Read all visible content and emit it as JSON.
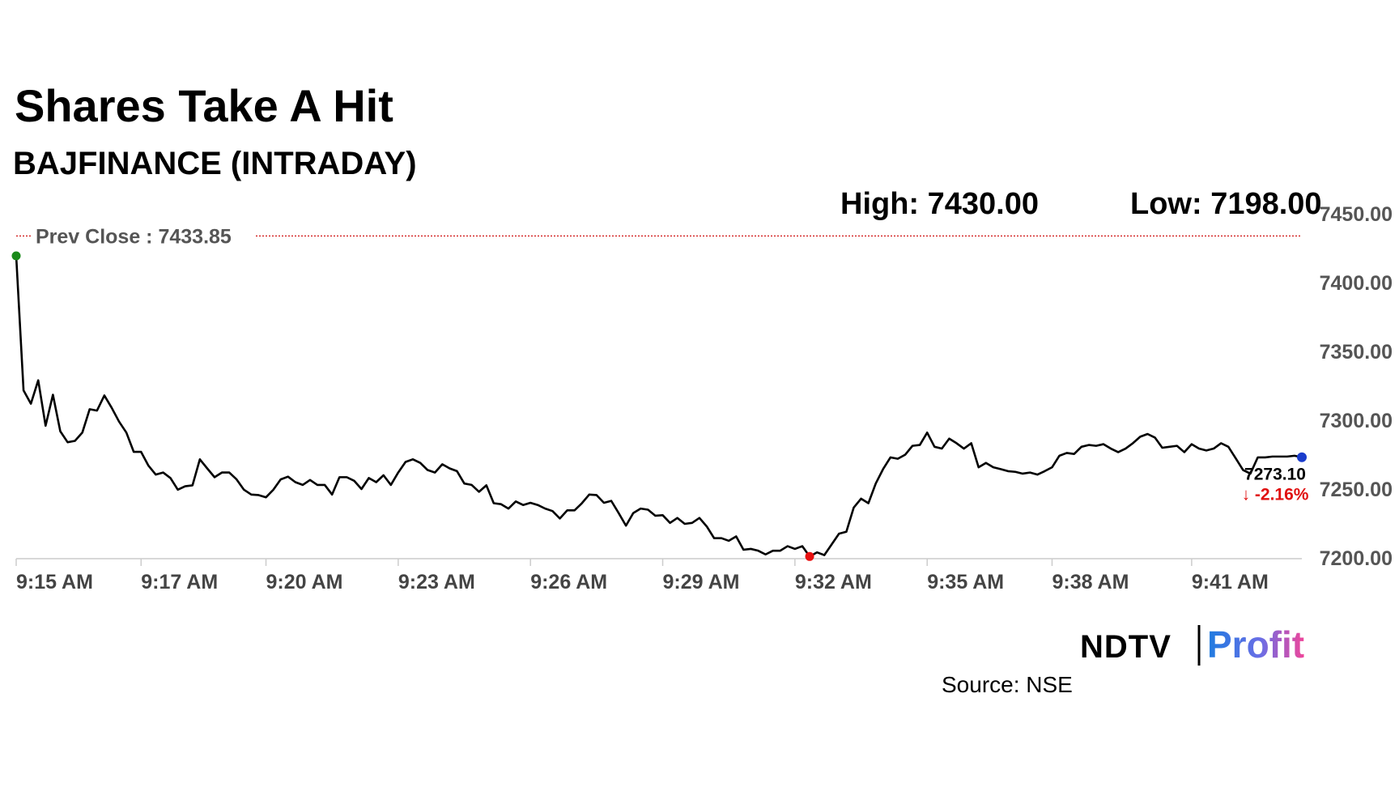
{
  "chart_data": {
    "type": "line",
    "title": "Shares Take A Hit",
    "subtitle": "BAJFINANCE (INTRADAY)",
    "high_label": "High: 7430.00",
    "low_label": "Low: 7198.00",
    "prev_close": {
      "label": "Prev Close : 7433.85",
      "value": 7433.85,
      "color": "#cc0000"
    },
    "last_label": "7273.10",
    "change_label": "↓ -2.16%",
    "change_color": "#e01010",
    "marker_colors": {
      "first": "#1a8a1a",
      "min": "#e81010",
      "last": "#1a3ccc"
    },
    "categories": [
      "9:15 AM",
      null,
      null,
      null,
      null,
      null,
      null,
      null,
      null,
      null,
      null,
      null,
      null,
      null,
      null,
      null,
      null,
      "9:17 AM",
      null,
      null,
      null,
      null,
      null,
      null,
      null,
      null,
      null,
      null,
      null,
      null,
      null,
      null,
      null,
      null,
      "9:20 AM",
      null,
      null,
      null,
      null,
      null,
      null,
      null,
      null,
      null,
      null,
      null,
      null,
      null,
      null,
      null,
      null,
      null,
      "9:23 AM",
      null,
      null,
      null,
      null,
      null,
      null,
      null,
      null,
      null,
      null,
      null,
      null,
      null,
      null,
      null,
      null,
      null,
      "9:26 AM",
      null,
      null,
      null,
      null,
      null,
      null,
      null,
      null,
      null,
      null,
      null,
      null,
      null,
      null,
      null,
      null,
      null,
      "9:29 AM",
      null,
      null,
      null,
      null,
      null,
      null,
      null,
      null,
      null,
      null,
      null,
      null,
      null,
      null,
      null,
      null,
      null,
      "9:32 AM",
      null,
      null,
      null,
      null,
      null,
      null,
      null,
      null,
      null,
      null,
      null,
      null,
      null,
      null,
      null,
      null,
      null,
      "9:35 AM",
      null,
      null,
      null,
      null,
      null,
      null,
      null,
      null,
      null,
      null,
      null,
      null,
      null,
      null,
      null,
      null,
      "9:38 AM",
      null,
      null,
      null,
      null,
      null,
      null,
      null,
      null,
      null,
      null,
      null,
      null,
      null,
      null,
      null,
      null,
      null,
      null,
      "9:41 AM",
      null,
      null,
      null,
      null,
      null,
      null,
      null,
      null,
      null,
      null,
      null,
      null,
      null,
      null,
      null
    ],
    "series": [
      {
        "color": "#000000",
        "values": [
          7419.4,
          7321.7,
          7312,
          7329,
          7296,
          7318.5,
          7292,
          7284,
          7285,
          7291,
          7308,
          7307,
          7318,
          7309,
          7299,
          7291,
          7277,
          7277,
          7267,
          7260.5,
          7262,
          7258,
          7249.5,
          7252,
          7252.7,
          7271.6,
          7265,
          7258.6,
          7262,
          7262,
          7257,
          7249.5,
          7246,
          7245.6,
          7244,
          7249.5,
          7257,
          7259,
          7255,
          7253,
          7256.6,
          7253,
          7253,
          7246,
          7258.6,
          7258.6,
          7256,
          7250,
          7258,
          7255,
          7260,
          7253,
          7262,
          7269.7,
          7271.6,
          7269,
          7263.8,
          7262,
          7268,
          7265,
          7263,
          7254,
          7253,
          7248,
          7252.7,
          7239.7,
          7239,
          7235.8,
          7241,
          7238.4,
          7240,
          7238.4,
          7235.8,
          7234,
          7228.6,
          7234.5,
          7234.5,
          7239.7,
          7246,
          7245.6,
          7240,
          7241.4,
          7232.6,
          7223.4,
          7232.6,
          7235.8,
          7235,
          7230.6,
          7231,
          7225.4,
          7229,
          7224.7,
          7225.4,
          7229,
          7222.8,
          7214.3,
          7214.3,
          7212.4,
          7215.6,
          7205.9,
          7206.5,
          7205.2,
          7202.5,
          7205.2,
          7205.2,
          7208.5,
          7206.5,
          7208.5,
          7201,
          7204,
          7202,
          7209.8,
          7217.6,
          7219,
          7236.5,
          7243,
          7239.7,
          7254,
          7264.5,
          7273,
          7272,
          7274.9,
          7281.4,
          7282,
          7291,
          7280.7,
          7279.4,
          7286.6,
          7283.3,
          7279.4,
          7283.3,
          7265.8,
          7269,
          7265.8,
          7264.5,
          7263,
          7262.5,
          7261.2,
          7262,
          7260.5,
          7263,
          7265.8,
          7274.2,
          7276.2,
          7275.5,
          7280.7,
          7282,
          7281.4,
          7282.6,
          7279.4,
          7276.8,
          7279.4,
          7283.3,
          7288,
          7290,
          7287.4,
          7280,
          7280.7,
          7281.4,
          7276.8,
          7282.6,
          7279.4,
          7278,
          7279.4,
          7283.3,
          7280.7,
          7272.3,
          7263.8,
          7261.2,
          7273,
          7273,
          7273.6,
          7273.6,
          7273.6,
          7274.2,
          7273.1
        ]
      }
    ],
    "ylim": [
      7200,
      7450
    ],
    "yticks": [
      {
        "value": 7200,
        "label": "7200.00"
      },
      {
        "value": 7250,
        "label": "7250.00"
      },
      {
        "value": 7300,
        "label": "7300.00"
      },
      {
        "value": 7350,
        "label": "7350.00"
      },
      {
        "value": 7400,
        "label": "7400.00"
      },
      {
        "value": 7450,
        "label": "7450.00"
      }
    ],
    "grid": false
  },
  "logo": {
    "left": "NDTV",
    "right": "Profit"
  },
  "source": "Source: NSE"
}
